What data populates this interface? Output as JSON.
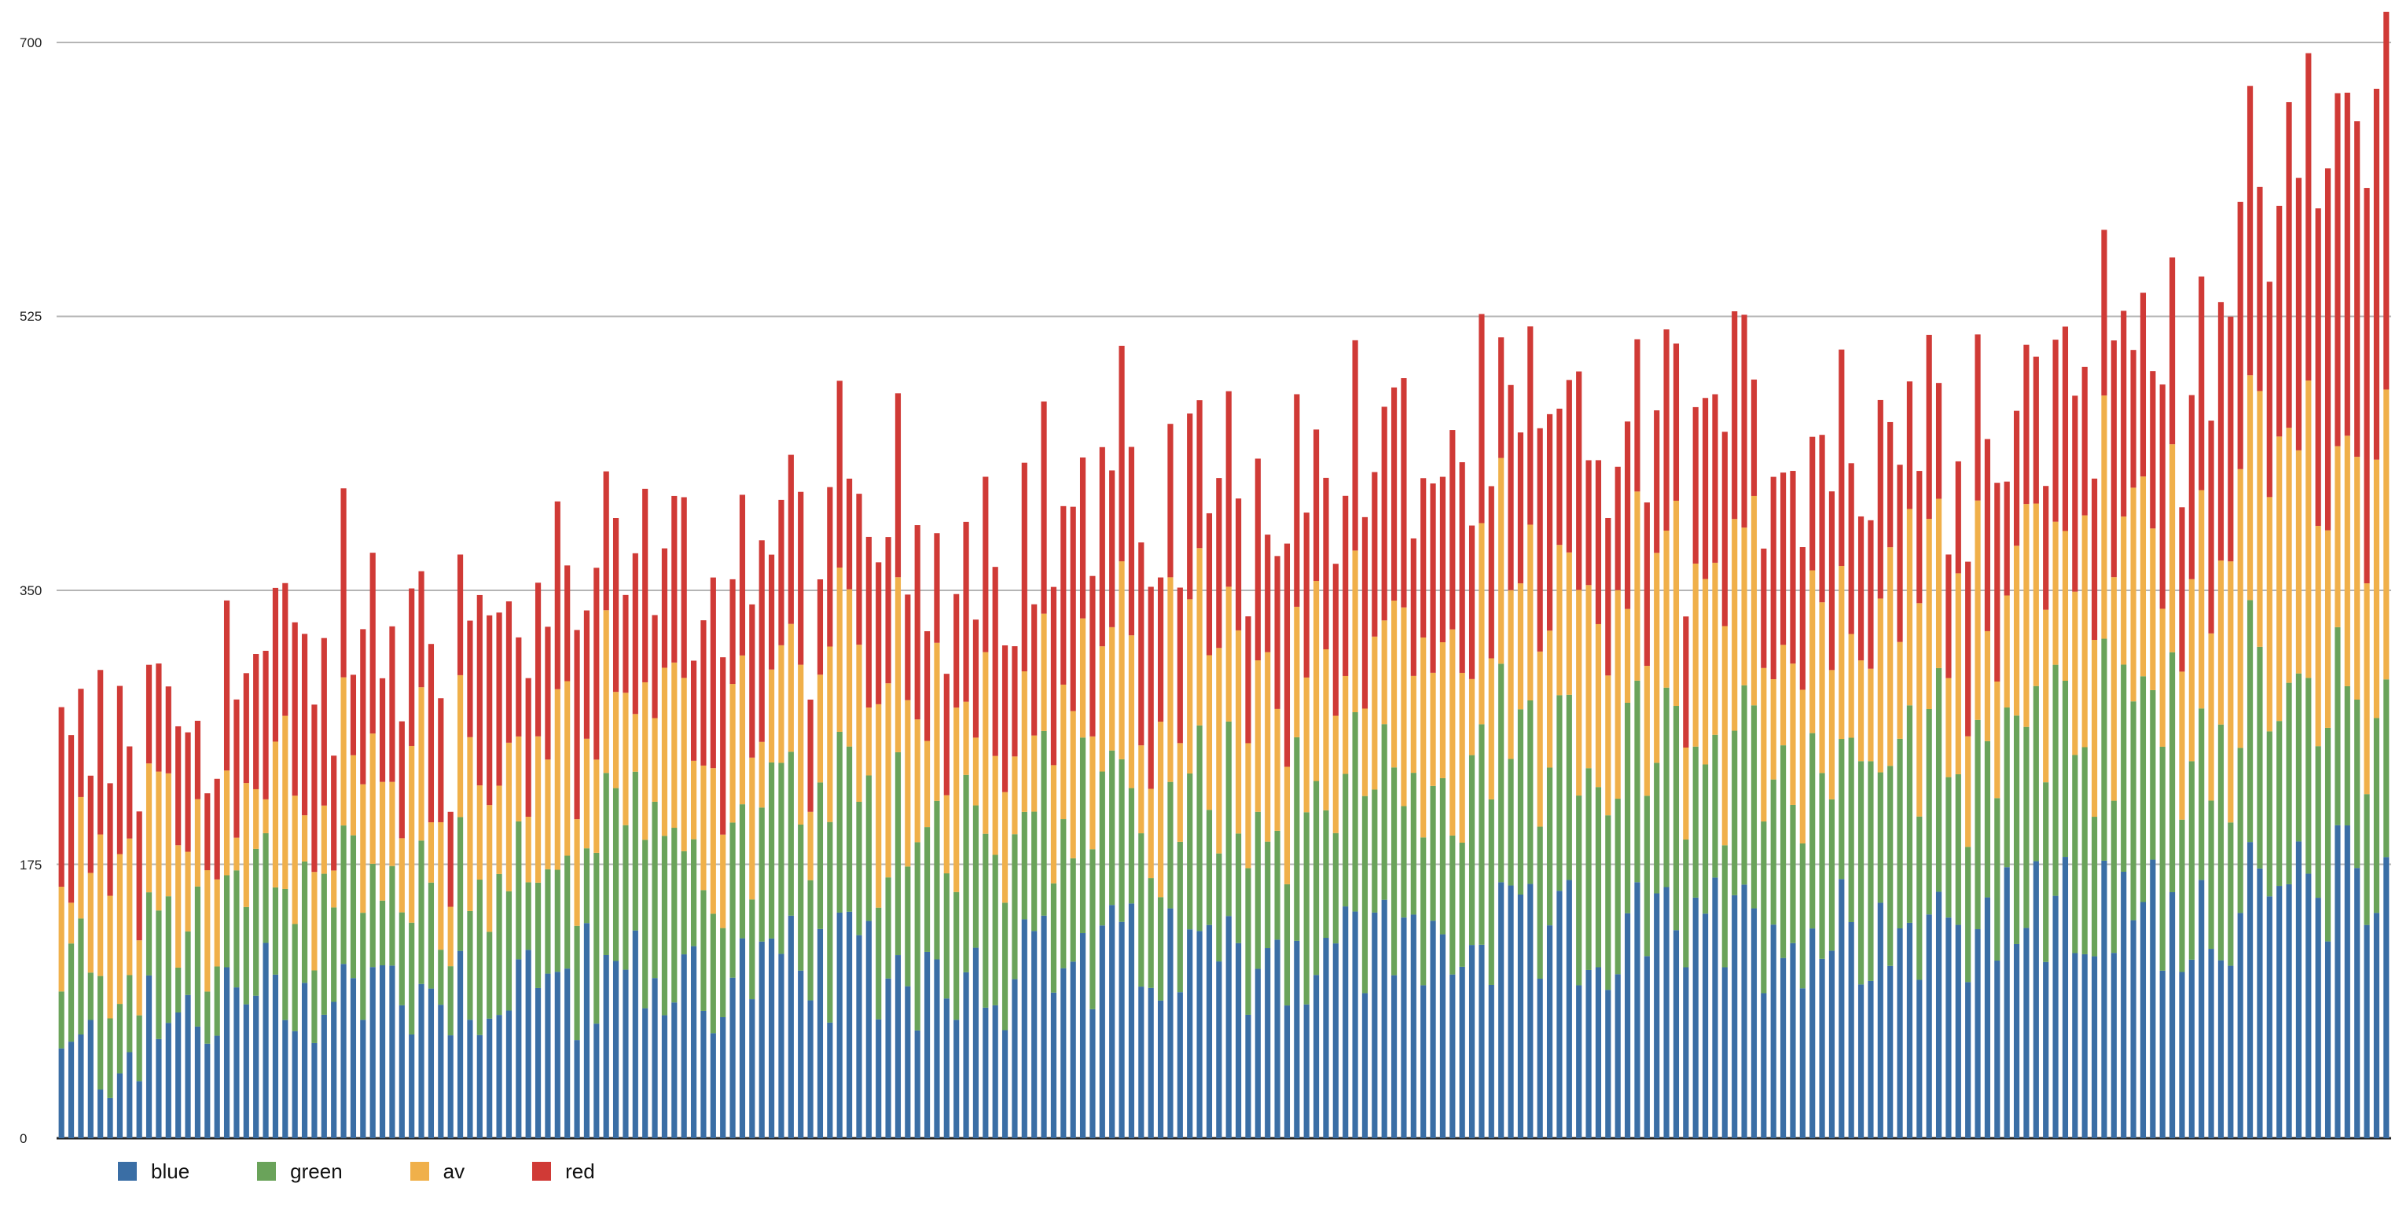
{
  "chart_data": {
    "type": "bar",
    "stacked": true,
    "title": "",
    "xlabel": "",
    "ylabel": "",
    "ylim": [
      0,
      700
    ],
    "yticks": [
      0,
      175,
      350,
      525,
      700
    ],
    "grid": true,
    "legend_position": "bottom-left",
    "bar_count": 240,
    "series": [
      {
        "name": "blue",
        "color": "#3a6ea5",
        "profile": [
          [
            0,
            45
          ],
          [
            20,
            92
          ],
          [
            40,
            98
          ],
          [
            60,
            100
          ],
          [
            80,
            106
          ],
          [
            100,
            108
          ],
          [
            120,
            118
          ],
          [
            140,
            122
          ],
          [
            160,
            128
          ],
          [
            180,
            134
          ],
          [
            200,
            140
          ],
          [
            220,
            145
          ],
          [
            239,
            170
          ]
        ],
        "jitter": 40
      },
      {
        "name": "green",
        "color": "#6aa35a",
        "profile": [
          [
            0,
            50
          ],
          [
            20,
            62
          ],
          [
            40,
            70
          ],
          [
            60,
            85
          ],
          [
            80,
            95
          ],
          [
            100,
            98
          ],
          [
            120,
            102
          ],
          [
            140,
            105
          ],
          [
            160,
            110
          ],
          [
            180,
            112
          ],
          [
            200,
            118
          ],
          [
            220,
            125
          ],
          [
            239,
            115
          ]
        ],
        "jitter": 35
      },
      {
        "name": "av",
        "color": "#f0b04a",
        "profile": [
          [
            0,
            55
          ],
          [
            20,
            65
          ],
          [
            40,
            72
          ],
          [
            60,
            80
          ],
          [
            80,
            85
          ],
          [
            100,
            88
          ],
          [
            120,
            90
          ],
          [
            140,
            92
          ],
          [
            160,
            95
          ],
          [
            180,
            100
          ],
          [
            200,
            110
          ],
          [
            220,
            125
          ],
          [
            239,
            165
          ]
        ],
        "jitter": 45
      },
      {
        "name": "red",
        "color": "#d03a36",
        "profile": [
          [
            0,
            80
          ],
          [
            20,
            85
          ],
          [
            40,
            87
          ],
          [
            60,
            92
          ],
          [
            80,
            96
          ],
          [
            100,
            103
          ],
          [
            120,
            108
          ],
          [
            140,
            112
          ],
          [
            160,
            110
          ],
          [
            180,
            108
          ],
          [
            200,
            106
          ],
          [
            220,
            130
          ],
          [
            239,
            230
          ]
        ],
        "jitter": 35
      }
    ]
  },
  "legend": {
    "items": [
      {
        "label": "blue",
        "color": "#3a6ea5"
      },
      {
        "label": "green",
        "color": "#6aa35a"
      },
      {
        "label": "av",
        "color": "#f0b04a"
      },
      {
        "label": "red",
        "color": "#d03a36"
      }
    ]
  },
  "axis": {
    "y_tick_labels": [
      "0",
      "175",
      "350",
      "525",
      "700"
    ]
  }
}
